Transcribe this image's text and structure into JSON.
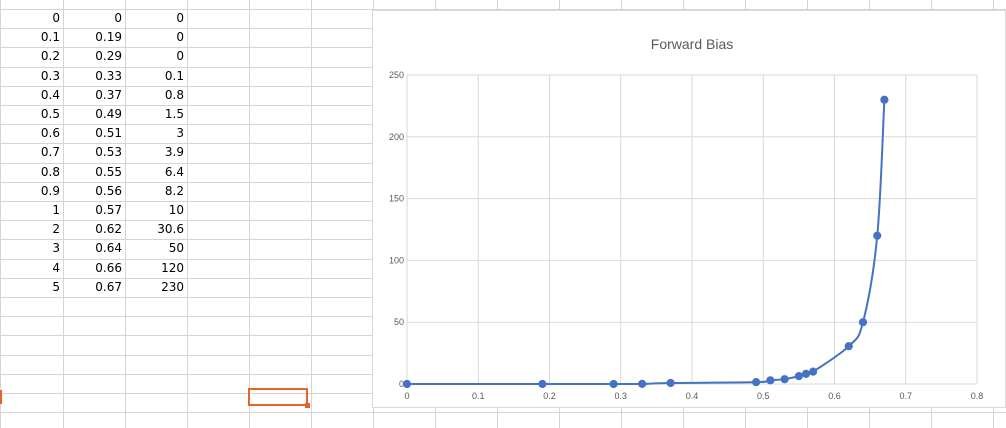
{
  "sheet": {
    "rows": [
      [
        "0",
        "0",
        "0"
      ],
      [
        "0.1",
        "0.19",
        "0"
      ],
      [
        "0.2",
        "0.29",
        "0"
      ],
      [
        "0.3",
        "0.33",
        "0.1"
      ],
      [
        "0.4",
        "0.37",
        "0.8"
      ],
      [
        "0.5",
        "0.49",
        "1.5"
      ],
      [
        "0.6",
        "0.51",
        "3"
      ],
      [
        "0.7",
        "0.53",
        "3.9"
      ],
      [
        "0.8",
        "0.55",
        "6.4"
      ],
      [
        "0.9",
        "0.56",
        "8.2"
      ],
      [
        "1",
        "0.57",
        "10"
      ],
      [
        "2",
        "0.62",
        "30.6"
      ],
      [
        "3",
        "0.64",
        "50"
      ],
      [
        "4",
        "0.66",
        "120"
      ],
      [
        "5",
        "0.67",
        "230"
      ]
    ]
  },
  "colors": {
    "series": "#4472c4",
    "gridline": "#d9d9d9",
    "selection": "#e8632b",
    "axis_text": "#595959",
    "title_text": "#595959"
  },
  "chart_data": {
    "type": "scatter",
    "title": "Forward Bias",
    "xlabel": "",
    "ylabel": "",
    "xlim": [
      0,
      0.8
    ],
    "ylim": [
      0,
      250
    ],
    "x_ticks": [
      "0",
      "0.1",
      "0.2",
      "0.3",
      "0.4",
      "0.5",
      "0.6",
      "0.7",
      "0.8"
    ],
    "y_ticks": [
      "0",
      "50",
      "100",
      "150",
      "200",
      "250"
    ],
    "grid": true,
    "smooth_line": true,
    "series": [
      {
        "x": [
          0,
          0.19,
          0.29,
          0.33,
          0.37,
          0.49,
          0.51,
          0.53,
          0.55,
          0.56,
          0.57,
          0.62,
          0.64,
          0.66,
          0.67
        ],
        "y": [
          0,
          0,
          0,
          0.1,
          0.8,
          1.5,
          3,
          3.9,
          6.4,
          8.2,
          10,
          30.6,
          50,
          120,
          230
        ]
      }
    ]
  }
}
